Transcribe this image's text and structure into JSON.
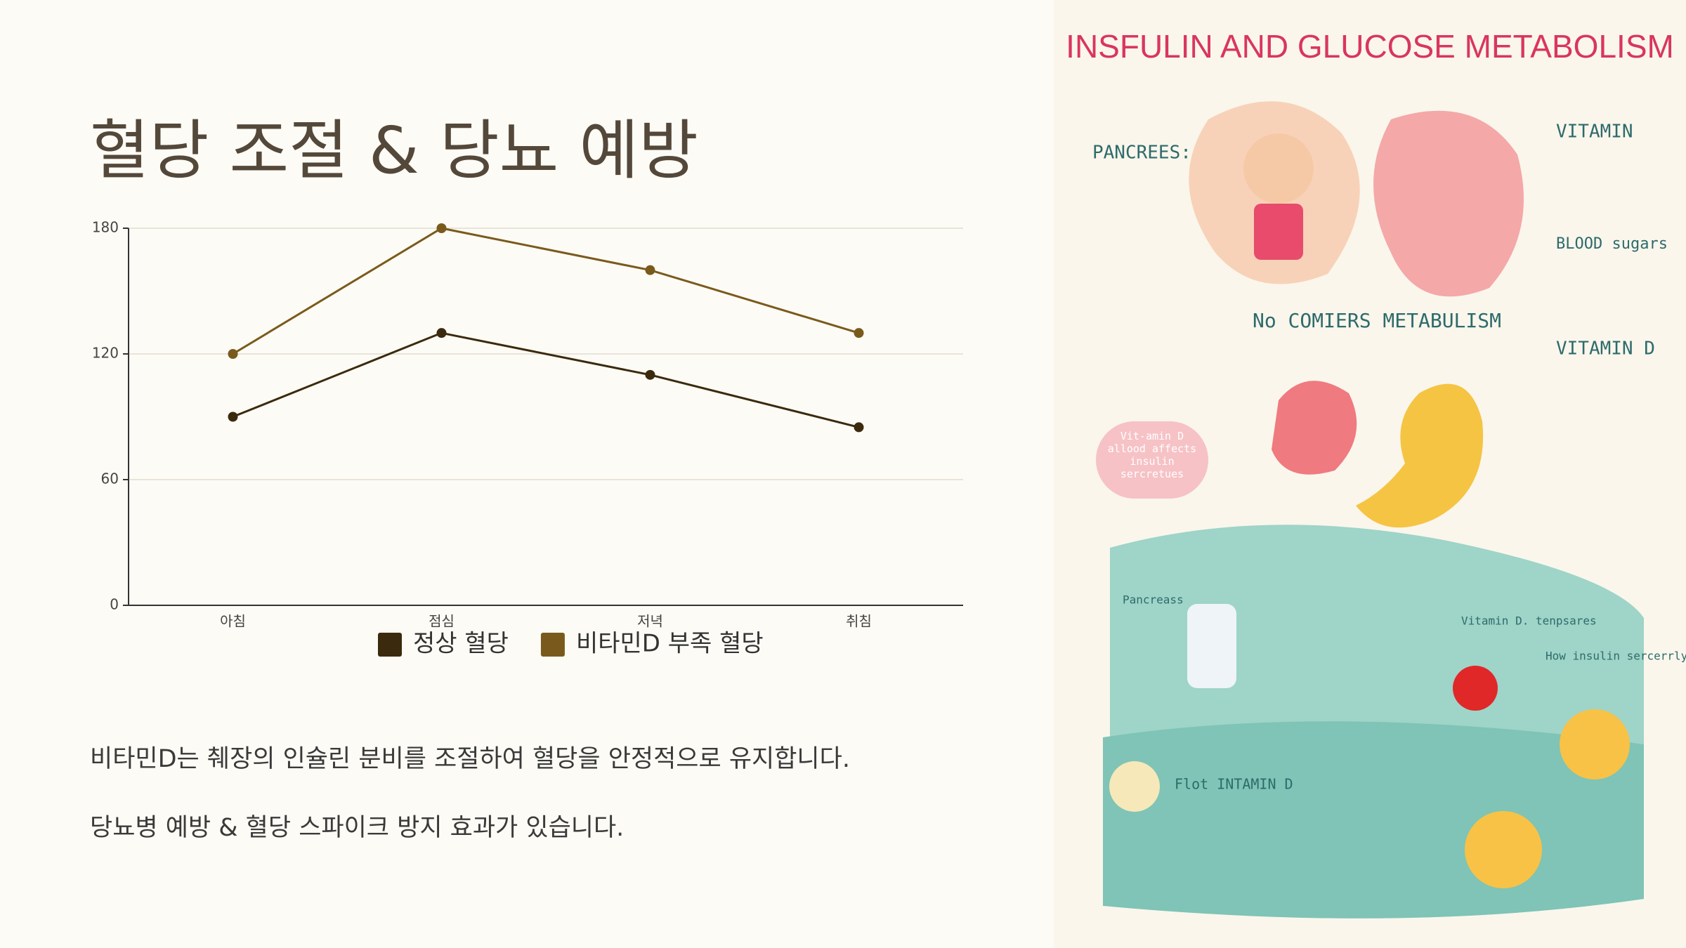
{
  "title": "혈당 조절 & 당뇨 예방",
  "chart_data": {
    "type": "line",
    "categories": [
      "아침",
      "점심",
      "저녁",
      "취침"
    ],
    "series": [
      {
        "name": "정상 혈당",
        "color": "#3b2a0e",
        "values": [
          90,
          130,
          110,
          85
        ]
      },
      {
        "name": "비타민D 부족 혈당",
        "color": "#7a5a1c",
        "values": [
          120,
          180,
          160,
          130
        ]
      }
    ],
    "ylim": [
      0,
      180
    ],
    "yticks": [
      0,
      60,
      120,
      180
    ],
    "grid": true,
    "legend": "bottom"
  },
  "body": [
    "비타민D는 췌장의 인슐린 분비를 조절하여 혈당을 안정적으로 유지합니다.",
    "당뇨병 예방 & 혈당 스파이크 방지 효과가 있습니다."
  ],
  "illustration": {
    "title": "INSFULIN AND GLUCOSE METABOLISM",
    "labels": [
      "PANCREES:",
      "VITAMIN",
      "BLOOD sugars",
      "VITAMIN D",
      "No COMIERS METABULISM",
      "Vit-amin D allood affects insulin sercretues",
      "Pancreass",
      "Vitamin D. tenpsares",
      "How insulin sercerrly",
      "Flot INTAMIN D"
    ]
  }
}
